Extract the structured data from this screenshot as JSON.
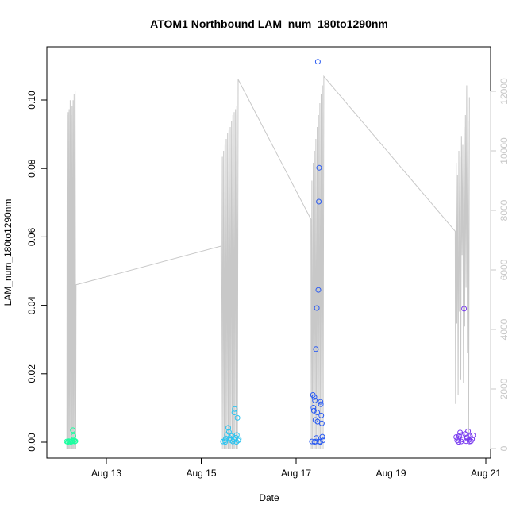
{
  "chart_data": {
    "type": "scatter",
    "title": "ATOM1 Northbound LAM_num_180to1290nm",
    "xlabel": "Date",
    "ylabel": "LAM_num_180to1290nm",
    "x_ticks": [
      "Aug 13",
      "Aug 15",
      "Aug 17",
      "Aug 19",
      "Aug 21"
    ],
    "xlim": [
      "2024-08-12 00:00",
      "2024-08-21 00:00"
    ],
    "y_ticks": [
      0.0,
      0.02,
      0.04,
      0.06,
      0.08,
      0.1
    ],
    "ylim": [
      0,
      0.112
    ],
    "y2_ticks": [
      0,
      2000,
      4000,
      6000,
      8000,
      10000,
      12000
    ],
    "y2lim": [
      0,
      12500
    ],
    "y2_color": "#c8c8c8",
    "grid": false,
    "points_color_scale": "time gradient: spring-green → sky-blue → blue → violet",
    "series": [
      {
        "group": "Aug 12",
        "marker": "open-circle",
        "color": "#1affa0",
        "points": [
          [
            "08-12 04:00",
            0.0002
          ],
          [
            "08-12 04:30",
            0.0001
          ],
          [
            "08-12 05:00",
            0.0003
          ],
          [
            "08-12 05:30",
            0.0002
          ],
          [
            "08-12 06:00",
            0.0001
          ],
          [
            "08-12 06:30",
            0.0002
          ],
          [
            "08-12 07:00",
            0.0035
          ],
          [
            "08-12 07:20",
            0.0018
          ],
          [
            "08-12 07:40",
            0.0005
          ],
          [
            "08-12 08:00",
            0.0002
          ],
          [
            "08-12 08:20",
            0.0003
          ],
          [
            "08-12 06:45",
            0.0004
          ]
        ]
      },
      {
        "group": "Aug 15",
        "marker": "open-circle",
        "color": "#2bc4f0",
        "points": [
          [
            "08-15 11:00",
            0.0002
          ],
          [
            "08-15 12:00",
            0.0005
          ],
          [
            "08-15 12:30",
            0.0011
          ],
          [
            "08-15 13:00",
            0.0021
          ],
          [
            "08-15 13:40",
            0.0042
          ],
          [
            "08-15 14:00",
            0.003
          ],
          [
            "08-15 14:30",
            0.0012
          ],
          [
            "08-15 15:00",
            0.0006
          ],
          [
            "08-15 15:30",
            0.0018
          ],
          [
            "08-15 16:00",
            0.0002
          ],
          [
            "08-15 16:30",
            0.0008
          ],
          [
            "08-15 16:45",
            0.0087
          ],
          [
            "08-15 17:00",
            0.0097
          ],
          [
            "08-15 17:30",
            0.0013
          ],
          [
            "08-15 18:00",
            0.0021
          ],
          [
            "08-15 18:20",
            0.0071
          ],
          [
            "08-15 18:40",
            0.0005
          ],
          [
            "08-15 19:00",
            0.0009
          ],
          [
            "08-15 12:10",
            0.0001
          ],
          [
            "08-15 17:50",
            0.0001
          ]
        ]
      },
      {
        "group": "Aug 17",
        "marker": "open-circle",
        "color": "#2a5bf2",
        "points": [
          [
            "08-17 08:00",
            0.0002
          ],
          [
            "08-17 08:30",
            0.0138
          ],
          [
            "08-17 08:45",
            0.0101
          ],
          [
            "08-17 09:00",
            0.0092
          ],
          [
            "08-17 09:15",
            0.0132
          ],
          [
            "08-17 09:30",
            0.0122
          ],
          [
            "08-17 09:45",
            0.0065
          ],
          [
            "08-17 10:00",
            0.0272
          ],
          [
            "08-17 10:15",
            0.0012
          ],
          [
            "08-17 10:30",
            0.0392
          ],
          [
            "08-17 10:40",
            0.0087
          ],
          [
            "08-17 10:50",
            0.006
          ],
          [
            "08-17 11:00",
            0.1112
          ],
          [
            "08-17 11:15",
            0.0445
          ],
          [
            "08-17 11:30",
            0.0703
          ],
          [
            "08-17 11:40",
            0.0802
          ],
          [
            "08-17 12:00",
            0.0002
          ],
          [
            "08-17 12:20",
            0.0118
          ],
          [
            "08-17 12:30",
            0.0111
          ],
          [
            "08-17 12:45",
            0.0078
          ],
          [
            "08-17 13:00",
            0.0055
          ],
          [
            "08-17 13:15",
            0.0016
          ],
          [
            "08-17 13:30",
            0.0005
          ],
          [
            "08-17 09:20",
            0.0001
          ],
          [
            "08-17 10:05",
            0.0002
          ],
          [
            "08-17 12:10",
            0.0001
          ]
        ]
      },
      {
        "group": "Aug 20",
        "marker": "open-circle",
        "color": "#7a3cf0",
        "points": [
          [
            "08-20 09:00",
            0.0015
          ],
          [
            "08-20 09:30",
            0.0005
          ],
          [
            "08-20 10:00",
            0.001
          ],
          [
            "08-20 10:30",
            0.0018
          ],
          [
            "08-20 11:00",
            0.0028
          ],
          [
            "08-20 11:30",
            0.0002
          ],
          [
            "08-20 12:00",
            0.0021
          ],
          [
            "08-20 12:30",
            0.0008
          ],
          [
            "08-20 13:00",
            0.039
          ],
          [
            "08-20 13:30",
            0.0024
          ],
          [
            "08-20 14:00",
            0.0003
          ],
          [
            "08-20 14:30",
            0.0014
          ],
          [
            "08-20 15:00",
            0.0032
          ],
          [
            "08-20 15:30",
            0.0007
          ],
          [
            "08-20 16:00",
            0.0017
          ],
          [
            "08-20 16:30",
            0.0003
          ],
          [
            "08-20 17:00",
            0.0009
          ],
          [
            "08-20 17:30",
            0.002
          ],
          [
            "08-20 10:15",
            0.0001
          ],
          [
            "08-20 15:45",
            0.0002
          ]
        ]
      }
    ],
    "background_trace": {
      "axis": "right",
      "color": "#c8c8c8",
      "points": [
        [
          "08-12 04:00",
          0
        ],
        [
          "08-12 04:10",
          11200
        ],
        [
          "08-12 04:30",
          0
        ],
        [
          "08-12 04:40",
          11300
        ],
        [
          "08-12 05:00",
          0
        ],
        [
          "08-12 05:10",
          11400
        ],
        [
          "08-12 05:30",
          0
        ],
        [
          "08-12 05:40",
          11700
        ],
        [
          "08-12 06:00",
          0
        ],
        [
          "08-12 06:10",
          11200
        ],
        [
          "08-12 06:30",
          0
        ],
        [
          "08-12 06:40",
          11500
        ],
        [
          "08-12 07:00",
          0
        ],
        [
          "08-12 07:10",
          11700
        ],
        [
          "08-12 07:30",
          0
        ],
        [
          "08-12 07:40",
          11900
        ],
        [
          "08-12 08:00",
          0
        ],
        [
          "08-12 08:10",
          12000
        ],
        [
          "08-12 08:30",
          0
        ],
        [
          "08-12 08:40",
          5500
        ],
        [
          "08-15 10:00",
          6800
        ],
        [
          "08-15 10:10",
          0
        ],
        [
          "08-15 10:40",
          9800
        ],
        [
          "08-15 11:00",
          0
        ],
        [
          "08-15 11:20",
          10000
        ],
        [
          "08-15 11:40",
          0
        ],
        [
          "08-15 12:00",
          10200
        ],
        [
          "08-15 12:20",
          0
        ],
        [
          "08-15 12:40",
          10400
        ],
        [
          "08-15 13:00",
          0
        ],
        [
          "08-15 13:20",
          10600
        ],
        [
          "08-15 13:40",
          0
        ],
        [
          "08-15 14:00",
          10700
        ],
        [
          "08-15 14:20",
          0
        ],
        [
          "08-15 14:40",
          10800
        ],
        [
          "08-15 15:00",
          0
        ],
        [
          "08-15 15:20",
          11000
        ],
        [
          "08-15 15:40",
          0
        ],
        [
          "08-15 16:00",
          11200
        ],
        [
          "08-15 16:20",
          0
        ],
        [
          "08-15 16:40",
          11300
        ],
        [
          "08-15 17:00",
          0
        ],
        [
          "08-15 17:20",
          11400
        ],
        [
          "08-15 17:40",
          0
        ],
        [
          "08-15 18:00",
          11500
        ],
        [
          "08-15 18:20",
          0
        ],
        [
          "08-15 18:40",
          12400
        ],
        [
          "08-17 07:30",
          7700
        ],
        [
          "08-17 07:40",
          0
        ],
        [
          "08-17 08:00",
          9000
        ],
        [
          "08-17 08:20",
          0
        ],
        [
          "08-17 08:40",
          9600
        ],
        [
          "08-17 09:00",
          0
        ],
        [
          "08-17 09:20",
          10000
        ],
        [
          "08-17 09:40",
          0
        ],
        [
          "08-17 10:00",
          10400
        ],
        [
          "08-17 10:20",
          0
        ],
        [
          "08-17 10:40",
          10800
        ],
        [
          "08-17 11:00",
          0
        ],
        [
          "08-17 11:20",
          11200
        ],
        [
          "08-17 11:40",
          0
        ],
        [
          "08-17 12:00",
          11600
        ],
        [
          "08-17 12:20",
          0
        ],
        [
          "08-17 12:40",
          11900
        ],
        [
          "08-17 13:00",
          0
        ],
        [
          "08-17 13:20",
          12200
        ],
        [
          "08-17 13:40",
          0
        ],
        [
          "08-17 14:00",
          12500
        ],
        [
          "08-20 08:30",
          7300
        ],
        [
          "08-20 08:40",
          1500
        ],
        [
          "08-20 09:00",
          9600
        ],
        [
          "08-20 09:20",
          4200
        ],
        [
          "08-20 09:40",
          9200
        ],
        [
          "08-20 10:00",
          1800
        ],
        [
          "08-20 10:20",
          10000
        ],
        [
          "08-20 10:40",
          4600
        ],
        [
          "08-20 11:00",
          9800
        ],
        [
          "08-20 11:20",
          2300
        ],
        [
          "08-20 11:40",
          10500
        ],
        [
          "08-20 12:00",
          6500
        ],
        [
          "08-20 12:20",
          10200
        ],
        [
          "08-20 12:40",
          2200
        ],
        [
          "08-20 13:00",
          10800
        ],
        [
          "08-20 13:20",
          4100
        ],
        [
          "08-20 13:40",
          11200
        ],
        [
          "08-20 14:00",
          5400
        ],
        [
          "08-20 14:20",
          12200
        ],
        [
          "08-20 14:40",
          3200
        ],
        [
          "08-20 15:00",
          11000
        ],
        [
          "08-20 15:20",
          200
        ],
        [
          "08-20 15:40",
          11800
        ]
      ]
    }
  }
}
